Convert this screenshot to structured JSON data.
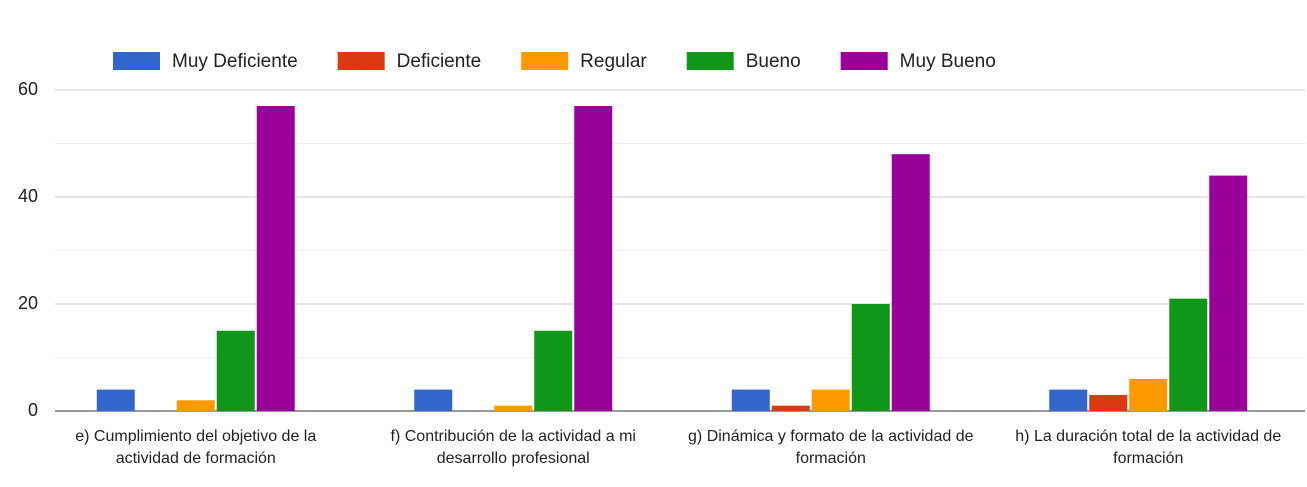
{
  "chart_data": {
    "type": "bar",
    "categories": [
      "e) Cumplimiento del objetivo de la actividad de formación",
      "f) Contribución de la actividad a mi desarrollo profesional",
      "g) Dinámica y formato de la actividad de formación",
      "h) La duración total de la actividad de formación"
    ],
    "series": [
      {
        "name": "Muy Deficiente",
        "color": "#3366cc",
        "values": [
          4,
          4,
          4,
          4
        ]
      },
      {
        "name": "Deficiente",
        "color": "#dc3912",
        "values": [
          0,
          0,
          1,
          3
        ]
      },
      {
        "name": "Regular",
        "color": "#ff9900",
        "values": [
          2,
          1,
          4,
          6
        ]
      },
      {
        "name": "Bueno",
        "color": "#109618",
        "values": [
          15,
          15,
          20,
          21
        ]
      },
      {
        "name": "Muy Bueno",
        "color": "#990099",
        "values": [
          57,
          57,
          48,
          44
        ]
      }
    ],
    "ylim": [
      0,
      60
    ],
    "yticks": [
      0,
      20,
      40,
      60
    ],
    "minor_yticks": [
      10,
      30,
      50
    ],
    "grid": true,
    "legend": "top"
  }
}
